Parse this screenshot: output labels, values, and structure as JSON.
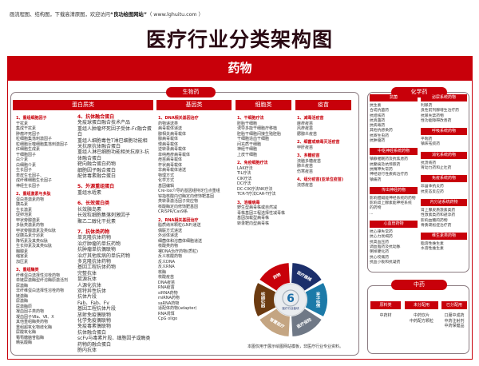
{
  "header": {
    "note": "画流程图、结构图，下载高清原图，欢迎访问",
    "site": "“良功绘图网站”",
    "url": "（ www.lghuitu.com ）",
    "title": "医疗行业分类架构图"
  },
  "drug_title": "药物",
  "bio": {
    "label": "生物药",
    "columns": [
      {
        "title": "蛋白质类"
      },
      {
        "title": "基因类"
      },
      {
        "title": "细胞类"
      },
      {
        "title": "疫苗"
      }
    ],
    "protein_left": [
      {
        "h": "1、重组细胞因子",
        "items": [
          "干扰素",
          "集成干扰素",
          "肿瘤坏死因子",
          "粒细胞集落刺激因子",
          "粒细胞巨噬细胞集落刺激因子",
          "红细胞生成素",
          "干细胞因子",
          "白介素",
          "白细胞介素",
          "生长因子",
          "表皮生长因子、",
          "成纤维细胞生长因子",
          "神经生长因子"
        ]
      },
      {
        "h": "2、重组激素与多肽",
        "items": [
          "蛋白类激素药物",
          "胰岛素",
          "生长激素",
          "促卵泡素",
          "甲状旁腺激素",
          "多肽类激素药物",
          "甲状旁腺激素及类似肽",
          "促胰岛素分泌素",
          "降钙素及其类似肽",
          "生长抑素及其类似肽",
          "胸腺素",
          "缩宫素",
          "加压素"
        ]
      },
      {
        "h": "3、重组酶类",
        "items": [
          "纤维蛋白选择性溶栓药物",
          "单链尿激酶型纤溶酶原激活剂",
          "尿激酶",
          "非纤维蛋白选择性溶栓药物",
          "链激酶",
          "尿激酶",
          "尿激酶原",
          "凝血因子类药物",
          "凝血因子Ⅶa、Ⅶ、Ⅹ",
          "其他重组酶类药物",
          "重组超氧化物歧化酶",
          "尿酸氧化酶",
          "葡萄糖脑苷脂酶",
          "精氨酸酶"
        ]
      }
    ],
    "protein_right": [
      {
        "h": "4、抗体融合蛋白",
        "items": [
          "免疫球蛋白融合技术产品",
          "重组人肿瘤坏死因子受体-Fc融合蛋白",
          "重组人细胞毒性T淋巴细胞功能相关抗原抗体融合蛋白",
          "重组人淋巴细胞功能相关抗原3-抗体融合蛋白",
          "靶向融合蛋白药物",
          "细胞因子融合蛋白",
          "配体毒素融合蛋白"
        ]
      },
      {
        "h": "5、外源重组蛋白",
        "items": [
          "重组水蛭素"
        ]
      },
      {
        "h": "6、长效蛋白类",
        "items": [
          "长效胰岛素",
          "长效粒细胞集落刺激因子",
          "聚乙二醇化干扰素"
        ]
      },
      {
        "h": "7、抗体类药物",
        "items": [
          "单克隆抗体药物",
          "治疗肿瘤的单抗药物",
          "抗肿瘤单抗偶联物",
          "治疗其他疾病的单抗药物",
          "多克隆抗体药物",
          "基因工程抗体药物",
          "完整抗体",
          "鼠源抗体",
          "人源化抗体",
          "双特异性抗体",
          "抗体片段",
          "Fab、Fab、Fv",
          "基因工程抗体片段",
          "放射免疫偶联物",
          "化学免疫偶联物",
          "免疫毒素偶联物",
          "抗体融合蛋白",
          "scFv与毒素片段、细胞因子或酶类药物的融合蛋白",
          "胞内抗体"
        ]
      }
    ],
    "gene": [
      {
        "h": "1、DNA相关基因治疗",
        "items": [
          "药物递送类",
          "病毒载体递送",
          "腺相关病毒载体",
          "腺病毒载体",
          "慢病毒载体",
          "逆转录病毒载体",
          "单纯疱疹病毒载体",
          "痘苗病毒载体",
          "杆状病毒载体",
          "非病毒载体递送",
          "物理方式",
          "化学方式",
          "基因编辑",
          "Cre-lox介导的基因组特定位点重组",
          "锌指核酸内切酶定向修饰靶基因",
          "类转录激活因子效应物",
          "核酸酶定向修饰靶基因",
          "CRISPR/Cas9系"
        ]
      },
      {
        "h": "2、RNA相关基因治疗",
        "items": [
          "脂质纳米颗粒(LNP)递送",
          "偶联方式递送",
          "外泌体递送",
          "细菌体和溶菌体细胞递送",
          "核酸类药物",
          "裸DNA治疗药物(质粒)",
          "反义核酸药物",
          "反义DNA",
          "反义RNA",
          "核酶",
          "核酸疫苗",
          "DNA疫苗",
          "RNA疫苗",
          "siRNA药物",
          "miRNA药物",
          "saRNA药物",
          "适配体药物(adapter)",
          "RNA诱饵",
          "CpG oligo"
        ]
      }
    ],
    "cell": [
      {
        "h": "1、干细胞疗法",
        "items": [
          "胚胎干细胞",
          "诱导多能干细胞疗移植",
          "胚胎干细胞间接生殖胚胎",
          "干细胞造血干细胞",
          "间充质干细胞",
          "神经干细胞",
          "上皮干细胞"
        ]
      },
      {
        "h": "2、免疫细胞疗法",
        "items": [
          "LAK疗法",
          "TIL疗法",
          "CIK疗法",
          "DC疗法",
          "DC-CIK疗法NK疗法",
          "TCR-T疗法CAR-T疗法"
        ]
      },
      {
        "h": "3、溶瘤病毒",
        "items": [
          "野生型病毒株或自然减",
          "毒株基因工程选择性减毒株",
          "基因加载型病毒株",
          "转录靶向型病毒株"
        ]
      }
    ],
    "vaccine": [
      {
        "h": "1、减毒活疫苗",
        "items": [
          "麻疹疫苗",
          "风疹疫苗",
          "腮腺炎疫苗"
        ]
      },
      {
        "h": "2、细菌或病毒灭活疫苗",
        "items": [
          "甲肝疫苗"
        ]
      },
      {
        "h": "3、多糖疫苗",
        "items": [
          "流脑多糖疫苗",
          "肺炎疫苗",
          "伤寒疫苗"
        ]
      },
      {
        "h": "4、组分疫苗(亚单位疫苗)",
        "items": [
          "流感疫苗"
        ]
      }
    ]
  },
  "chem": {
    "label": "化学药",
    "left": [
      {
        "h": "抗菌",
        "items": [
          "抗生素",
          "合成抗菌药",
          "抗结核药",
          "抗真菌药",
          "抗病毒药",
          "其他抗感染药",
          "抗寄生虫药",
          "抗肿瘤药"
        ]
      },
      {
        "h": "中枢神经系统药物",
        "items": [
          "镇静催眠药及抗焦虑药",
          "抗癫痫及抗惊厥药",
          "抗精神失常药",
          "神经退行性疾病治疗药",
          "镇痛药"
        ]
      },
      {
        "h": "传出神经药物",
        "items": [
          "影响胆碱能神经系统的药物",
          "影响肾上腺素能神经系统",
          "的药物",
          "..."
        ]
      },
      {
        "h": "心血管药物",
        "items": [
          "抗心律失常药",
          "抗心力衰竭药",
          "抗高血压药",
          "调血脂药及抗动脉",
          "粥样硬化药",
          "抗心绞痛药",
          "抗血小板和抗凝药"
        ]
      }
    ],
    "right": [
      {
        "h": "泌尿系统药物",
        "items": [
          "利尿药",
          "良性前列腺增生治疗药",
          "抗尿失禁药物",
          "性功能障碍改善药"
        ]
      },
      {
        "h": "呼吸系统药物",
        "items": [
          "平喘药",
          "镇咳祛痰药"
        ]
      },
      {
        "h": "消化系统药物",
        "items": [
          "抗溃疡药",
          "胃动力药和止吐药"
        ]
      },
      {
        "h": "免疫系统药物",
        "items": [
          "非甾体抗炎药",
          "抗变态反应药"
        ]
      },
      {
        "h": "内分泌系统药物",
        "items": [
          "肾上腺皮质激素类药",
          "性激素类药和避孕药",
          "影响血糖的药物",
          "骨质疏松症治疗药"
        ]
      },
      {
        "h": "维生素类药物",
        "items": [
          "脂溶性维生素",
          "水溶性维生素"
        ]
      }
    ]
  },
  "tcm": {
    "label": "中药",
    "cols": [
      {
        "h": "原料类",
        "items": [
          "中药材"
        ]
      },
      {
        "h": "未分配用",
        "items": [
          "中药饮片",
          "中药配方颗粒"
        ]
      },
      {
        "h": "已分配用",
        "items": [
          "口服中成药",
          "中药注射剂",
          "中药保健品"
        ]
      }
    ]
  },
  "wheel": {
    "number": "6",
    "center_label": "医疗行业板块",
    "segments": [
      {
        "label": "药物",
        "color": "#c8000a"
      },
      {
        "label": "医疗器械",
        "color": "#1c2f6b"
      },
      {
        "label": "体外诊断",
        "color": "#1c7aa8"
      },
      {
        "label": "医疗保险",
        "color": "#6f7886"
      },
      {
        "label": "智慧医疗",
        "color": "#c4a582"
      },
      {
        "label": "医疗服务",
        "color": "#6b3a10"
      }
    ]
  },
  "footnote": "本图仅用于展示绘图网站模板，非医疗行业专业资料。",
  "colors": {
    "accent": "#c8000a"
  }
}
